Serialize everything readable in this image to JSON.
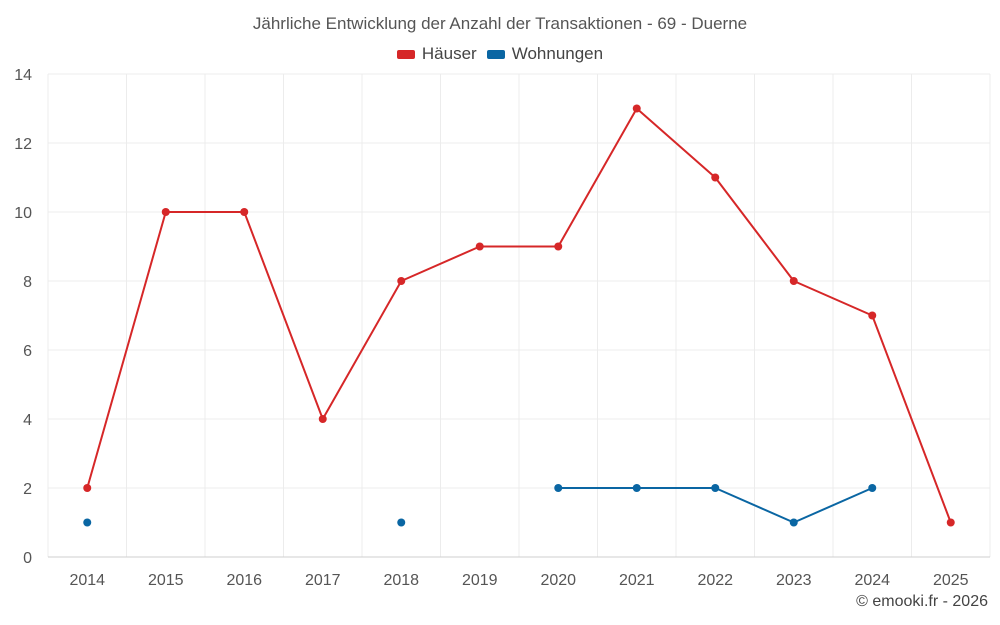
{
  "chart_data": {
    "type": "line",
    "title": "Jährliche Entwicklung der Anzahl der Transaktionen - 69 - Duerne",
    "xlabel": "",
    "ylabel": "",
    "categories": [
      "2014",
      "2015",
      "2016",
      "2017",
      "2018",
      "2019",
      "2020",
      "2021",
      "2022",
      "2023",
      "2024",
      "2025"
    ],
    "ylim": [
      0,
      14
    ],
    "yticks": [
      0,
      2,
      4,
      6,
      8,
      10,
      12,
      14
    ],
    "grid": true,
    "legend_position": "top-center",
    "series": [
      {
        "name": "Häuser",
        "color": "#d62728",
        "values": [
          2,
          10,
          10,
          4,
          8,
          9,
          9,
          13,
          11,
          8,
          7,
          1
        ]
      },
      {
        "name": "Wohnungen",
        "color": "#0a66a3",
        "values": [
          1,
          null,
          null,
          null,
          1,
          null,
          2,
          2,
          2,
          1,
          2,
          null
        ]
      }
    ]
  },
  "credit": "© emooki.fr - 2026"
}
